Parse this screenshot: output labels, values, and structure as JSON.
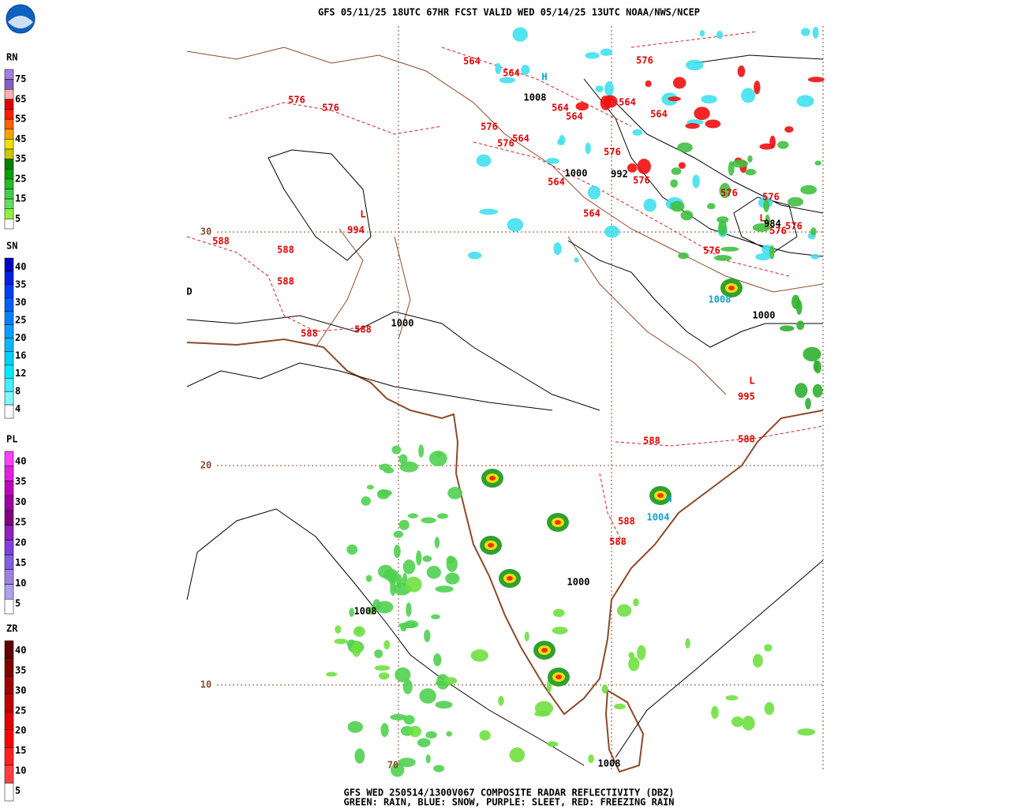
{
  "header": {
    "title": "GFS 05/11/25 18UTC 67HR FCST VALID WED 05/14/25 13UTC NOAA/NWS/NCEP"
  },
  "legends": [
    {
      "label": "RN",
      "ticks": [
        75,
        65,
        55,
        45,
        35,
        25,
        15,
        5
      ],
      "colors": [
        "#a080e0",
        "#8060c0",
        "#ffb0b0",
        "#e00000",
        "#ff2000",
        "#ff6000",
        "#ffa000",
        "#f0e000",
        "#c8c800",
        "#008000",
        "#00a000",
        "#20c020",
        "#40d040",
        "#60e060",
        "#90f040",
        "#ffffff"
      ]
    },
    {
      "label": "SN",
      "ticks": [
        40,
        35,
        30,
        25,
        20,
        16,
        12,
        8,
        4
      ],
      "colors": [
        "#0000c0",
        "#0020e0",
        "#0040f0",
        "#0060ff",
        "#0080ff",
        "#00a0ff",
        "#00b8ff",
        "#00d0ff",
        "#00e8ff",
        "#40f0ff",
        "#80f8ff",
        "#ffffff"
      ]
    },
    {
      "label": "PL",
      "ticks": [
        40,
        35,
        30,
        25,
        20,
        15,
        10,
        5
      ],
      "colors": [
        "#ff40ff",
        "#e020e0",
        "#c000c0",
        "#a000a0",
        "#800080",
        "#9020c0",
        "#8040e0",
        "#8060e0",
        "#a080e0",
        "#b0a0f0",
        "#ffffff"
      ]
    },
    {
      "label": "ZR",
      "ticks": [
        40,
        35,
        30,
        25,
        20,
        15,
        10,
        5
      ],
      "colors": [
        "#600000",
        "#800000",
        "#a00000",
        "#c00000",
        "#e00000",
        "#ff0000",
        "#ff2020",
        "#ff4040",
        "#ffffff"
      ]
    }
  ],
  "map": {
    "red_labels": [
      "564",
      "564",
      "564",
      "564",
      "564",
      "564",
      "564",
      "564",
      "564",
      "576",
      "576",
      "576",
      "576",
      "576",
      "576",
      "576",
      "576",
      "576",
      "576",
      "576",
      "576",
      "588",
      "588",
      "588",
      "588",
      "588",
      "588",
      "588",
      "588",
      "588",
      "L",
      "L",
      "L",
      "994",
      "995"
    ],
    "black_labels": [
      "1000",
      "992",
      "1000",
      "1000",
      "1000",
      "1008",
      "1008",
      "984",
      "1008",
      "D"
    ],
    "blue_labels": [
      "H",
      "H",
      "1008",
      "1004"
    ],
    "grid_labels": [
      "30",
      "20",
      "10",
      "70"
    ]
  },
  "footer": {
    "line1": "GFS WED 250514/1300V067 COMPOSITE RADAR REFLECTIVITY (DBZ)",
    "line2": "GREEN: RAIN, BLUE: SNOW, PURPLE: SLEET, RED: FREEZING RAIN"
  }
}
